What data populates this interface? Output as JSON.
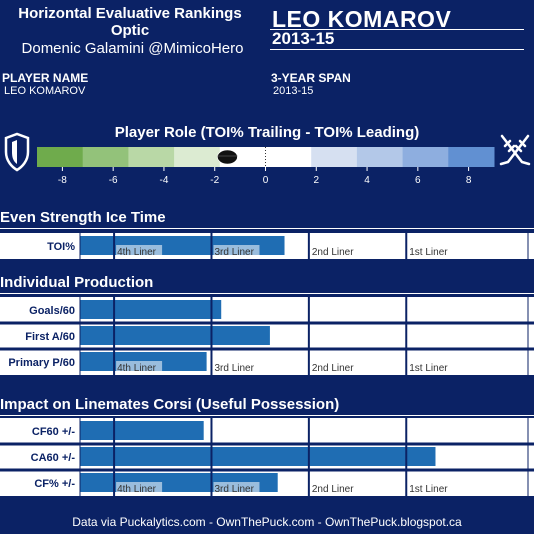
{
  "header": {
    "title_line1": "Horizontal Evaluative Rankings",
    "title_line2": "Optic",
    "author": "Domenic Galamini @MimicoHero",
    "player_name": "LEO KOMAROV",
    "season": "2013-15"
  },
  "info": {
    "player_name_label": "PLAYER NAME",
    "player_name_value": "LEO KOMAROV",
    "span_label": "3-YEAR SPAN",
    "span_value": "2013-15"
  },
  "colors": {
    "background": "#0b2265",
    "bar": "#1f6db3",
    "line": "#0b2265"
  },
  "chart_data": [
    {
      "type": "heatmap",
      "title": "Player Role (TOI% Trailing - TOI% Leading)",
      "x": [
        -8,
        -6,
        -4,
        -2,
        0,
        2,
        4,
        6,
        8
      ],
      "xlim": [
        -9,
        9
      ],
      "marker": -1.5,
      "scale_colors": [
        "#6fab4c",
        "#93c27a",
        "#b9d8a6",
        "#dcebd2",
        "#ffffff",
        "#ffffff",
        "#d6e0f1",
        "#b3c8e8",
        "#8eaedf",
        "#6190d2"
      ]
    },
    {
      "type": "bar",
      "title": "Even Strength Ice Time",
      "categories": [
        "TOI%"
      ],
      "values": [
        1.75
      ],
      "xlim": [
        -0.35,
        4.25
      ],
      "thresholds": [
        {
          "label": "4th Liner",
          "value": 0
        },
        {
          "label": "3rd Liner",
          "value": 1
        },
        {
          "label": "2nd Liner",
          "value": 2
        },
        {
          "label": "1st Liner",
          "value": 3
        }
      ]
    },
    {
      "type": "bar",
      "title": "Individual Production",
      "categories": [
        "Goals/60",
        "First A/60",
        "Primary P/60"
      ],
      "values": [
        1.1,
        1.6,
        0.95
      ],
      "xlim": [
        -0.35,
        4.25
      ],
      "thresholds": [
        {
          "label": "4th Liner",
          "value": 0
        },
        {
          "label": "3rd Liner",
          "value": 1
        },
        {
          "label": "2nd Liner",
          "value": 2
        },
        {
          "label": "1st Liner",
          "value": 3
        }
      ]
    },
    {
      "type": "bar",
      "title": "Impact on Linemates Corsi (Useful Possession)",
      "categories": [
        "CF60 +/-",
        "CA60 +/-",
        "CF% +/-"
      ],
      "values": [
        0.92,
        3.3,
        1.68
      ],
      "xlim": [
        -0.35,
        4.25
      ],
      "thresholds": [
        {
          "label": "4th Liner",
          "value": 0
        },
        {
          "label": "3rd Liner",
          "value": 1
        },
        {
          "label": "2nd Liner",
          "value": 2
        },
        {
          "label": "1st Liner",
          "value": 3
        }
      ]
    }
  ],
  "footer": "Data via Puckalytics.com - OwnThePuck.com - OwnThePuck.blogspot.ca",
  "icons": {
    "left": "shield-icon",
    "right": "crossed-sticks-icon"
  }
}
